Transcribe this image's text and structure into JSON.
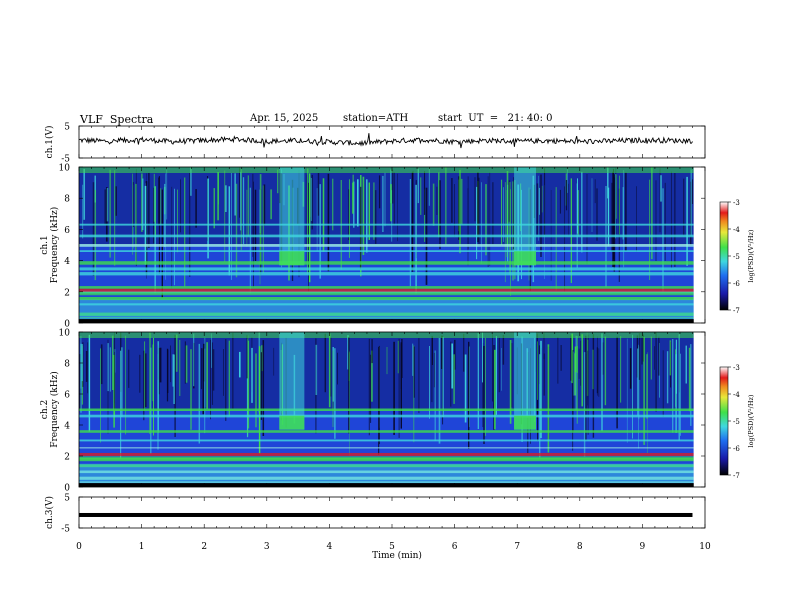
{
  "header": {
    "title": "VLF  Spectra",
    "date": "Apr. 15, 2025",
    "station": "station=ATH",
    "start": "start  UT  =   21: 40: 0"
  },
  "chart_data": [
    {
      "type": "line",
      "panel": "ch1-waveform",
      "ylabel": "ch.1(V)",
      "ylim": [
        -5,
        5
      ],
      "yticks": [
        "5",
        "-5"
      ],
      "xlim": [
        0,
        10
      ],
      "series": [
        {
          "x": [
            0,
            0.5,
            1,
            1.5,
            2,
            2.5,
            3,
            3.5,
            4,
            4.5,
            5,
            5.5,
            6,
            6.5,
            7,
            7.5,
            8,
            8.5,
            9,
            9.8
          ],
          "values": [
            0.6,
            0.2,
            0.8,
            0.1,
            0.5,
            0.9,
            0.2,
            0.4,
            0.0,
            -0.4,
            0.3,
            0.7,
            0.1,
            0.5,
            0.2,
            0.4,
            0.1,
            0.3,
            0.6,
            0.4
          ]
        }
      ]
    },
    {
      "type": "heatmap",
      "panel": "ch1-spectrogram",
      "ylabel": "ch.1\nFrequency  (kHz)",
      "yticks": [
        "0",
        "2",
        "4",
        "6",
        "8",
        "10"
      ],
      "ylim": [
        0,
        10
      ],
      "xlim": [
        0,
        10
      ],
      "colorbar": {
        "label": "log(PSD)(V²/Hz)",
        "ticks": [
          "-3",
          "-4",
          "-5",
          "-6",
          "-7"
        ],
        "range": [
          -7,
          -3
        ]
      },
      "features": {
        "bright_intervals_min": [
          [
            3.2,
            3.6
          ],
          [
            6.95,
            7.3
          ]
        ],
        "bands_khz": [
          0.3,
          0.6,
          1.2,
          1.6,
          2.0,
          2.3,
          3.2,
          3.5,
          3.9,
          4.6,
          5.0,
          5.6,
          6.3
        ],
        "strong_band_khz": 2.1
      }
    },
    {
      "type": "heatmap",
      "panel": "ch2-spectrogram",
      "ylabel": "ch.2\nFrequency  (kHz)",
      "yticks": [
        "0",
        "2",
        "4",
        "6",
        "8",
        "10"
      ],
      "ylim": [
        0,
        10
      ],
      "xlim": [
        0,
        10
      ],
      "colorbar": {
        "label": "log(PSD)(V²/Hz)",
        "ticks": [
          "-3",
          "-4",
          "-5",
          "-6",
          "-7"
        ],
        "range": [
          -7,
          -3
        ]
      },
      "features": {
        "bright_intervals_min": [
          [
            3.2,
            3.6
          ],
          [
            6.95,
            7.3
          ]
        ],
        "bands_khz": [
          0.3,
          0.6,
          1.0,
          1.4,
          1.8,
          2.5,
          3.0,
          3.6,
          4.6,
          5.0
        ],
        "strong_band_khz": 2.1
      }
    },
    {
      "type": "line",
      "panel": "ch3-waveform",
      "ylabel": "ch.3(V)",
      "ylim": [
        -5,
        5
      ],
      "yticks": [
        "5",
        "-5"
      ],
      "xlim": [
        0,
        10
      ],
      "series": [
        {
          "x": [
            0,
            9.8
          ],
          "values": [
            -0.8,
            -0.8
          ]
        }
      ]
    }
  ],
  "xaxis": {
    "label": "Time  (min)",
    "ticks": [
      "0",
      "1",
      "2",
      "3",
      "4",
      "5",
      "6",
      "7",
      "8",
      "9",
      "10"
    ]
  },
  "colors": {
    "spec_deep": "#07082c",
    "spec_blue": "#1f45d8",
    "spec_cyan": "#3fd8df",
    "spec_green": "#3ee04a",
    "spec_red": "#e31b1b"
  }
}
